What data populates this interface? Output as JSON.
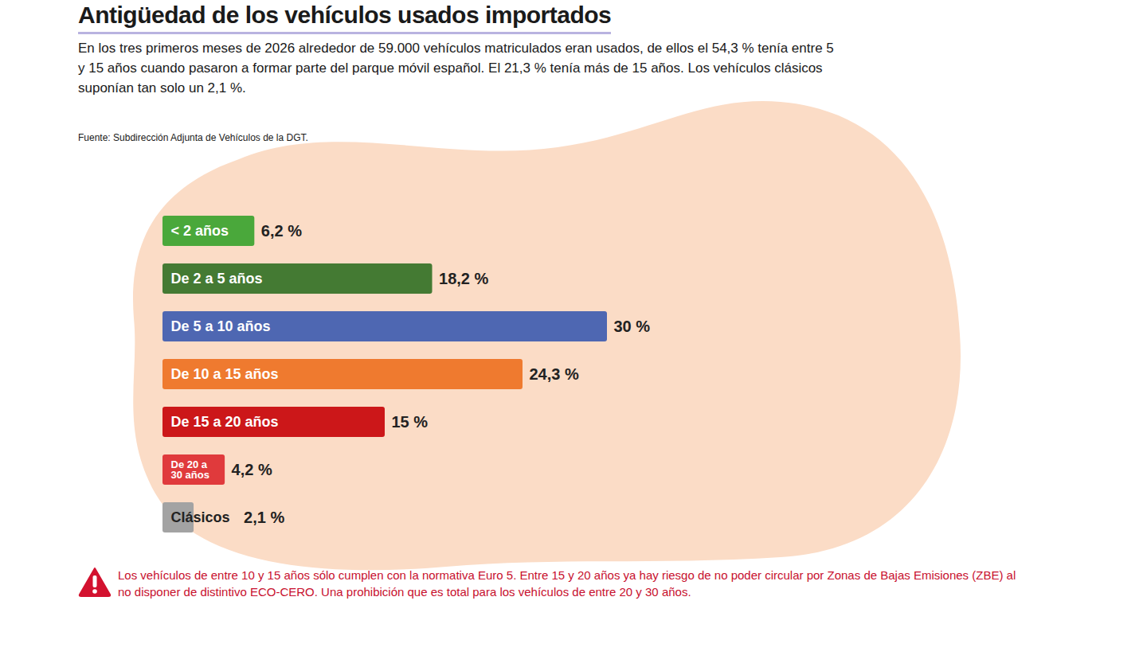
{
  "chart_data": {
    "type": "bar",
    "orientation": "horizontal",
    "title": "Antigüedad de los vehículos usados importados",
    "subtitle": "En los tres primeros meses de 2026 alrededor de 59.000 vehículos matriculados eran usados, de ellos el 54,3 % tenía entre 5 y 15 años cuando pasaron a formar parte del parque móvil español. El 21,3 % tenía más de 15 años. Los vehículos clásicos suponían tan solo un 2,1 %.",
    "source": "Fuente: Subdirección Adjunta de Vehículos de la DGT.",
    "footnote": "Los vehículos de entre 10 y 15 años sólo cumplen con la normativa Euro 5. Entre 15 y 20 años ya hay riesgo de no poder circular por Zonas de Bajas Emisiones (ZBE) al no disponer de distintivo ECO-CERO. Una prohibición que es total para los vehículos de entre 20 y 30 años.",
    "categories": [
      "< 2 años",
      "De 2 a 5 años",
      "De 5 a 10 años",
      "De 10 a 15 años",
      "De 15 a 20 años",
      "De 20 a 30 años",
      "Clásicos"
    ],
    "values": [
      6.2,
      18.2,
      30,
      24.3,
      15,
      4.2,
      2.1
    ],
    "value_labels": [
      "6,2 %",
      "18,2 %",
      "30 %",
      "24,3 %",
      "15 %",
      "4,2 %",
      "2,1 %"
    ],
    "colors": [
      "#4aa83b",
      "#447a33",
      "#4e67b2",
      "#ef7a2f",
      "#cc1719",
      "#e03a3c",
      "#a3a3a3"
    ],
    "xlim": [
      0,
      30
    ],
    "xticks": [],
    "data_labels": true,
    "tick_labels": false,
    "grid": false
  }
}
